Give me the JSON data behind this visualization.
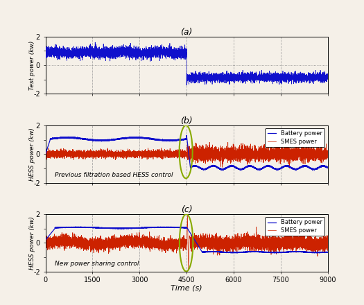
{
  "xlim": [
    0,
    9000
  ],
  "xticks": [
    0,
    1500,
    3000,
    4500,
    6000,
    7500,
    9000
  ],
  "ylim_a": [
    -2,
    2
  ],
  "ylim_bc": [
    -2,
    2
  ],
  "yticks_a": [
    -2,
    -1,
    0,
    1,
    2
  ],
  "yticks_bc": [
    -2,
    -1,
    0,
    1,
    2
  ],
  "xlabel": "Time (s)",
  "ylabel_a": "Test power (kw)",
  "ylabel_bc": "HESS power (kw)",
  "title_a": "(a)",
  "title_b": "(b)",
  "title_c": "(c)",
  "label_b": "Previous filtration based HESS control",
  "label_c": "New power sharing control",
  "legend_battery": "Battery power",
  "legend_smes": "SMES power",
  "color_battery": "#1010CC",
  "color_smes": "#CC2200",
  "color_test": "#1010CC",
  "transition_time": 4500,
  "bg_color": "#f5f0e8",
  "grid_color": "#888888",
  "ellipse_color": "#88aa00",
  "vline_color": "#999999"
}
